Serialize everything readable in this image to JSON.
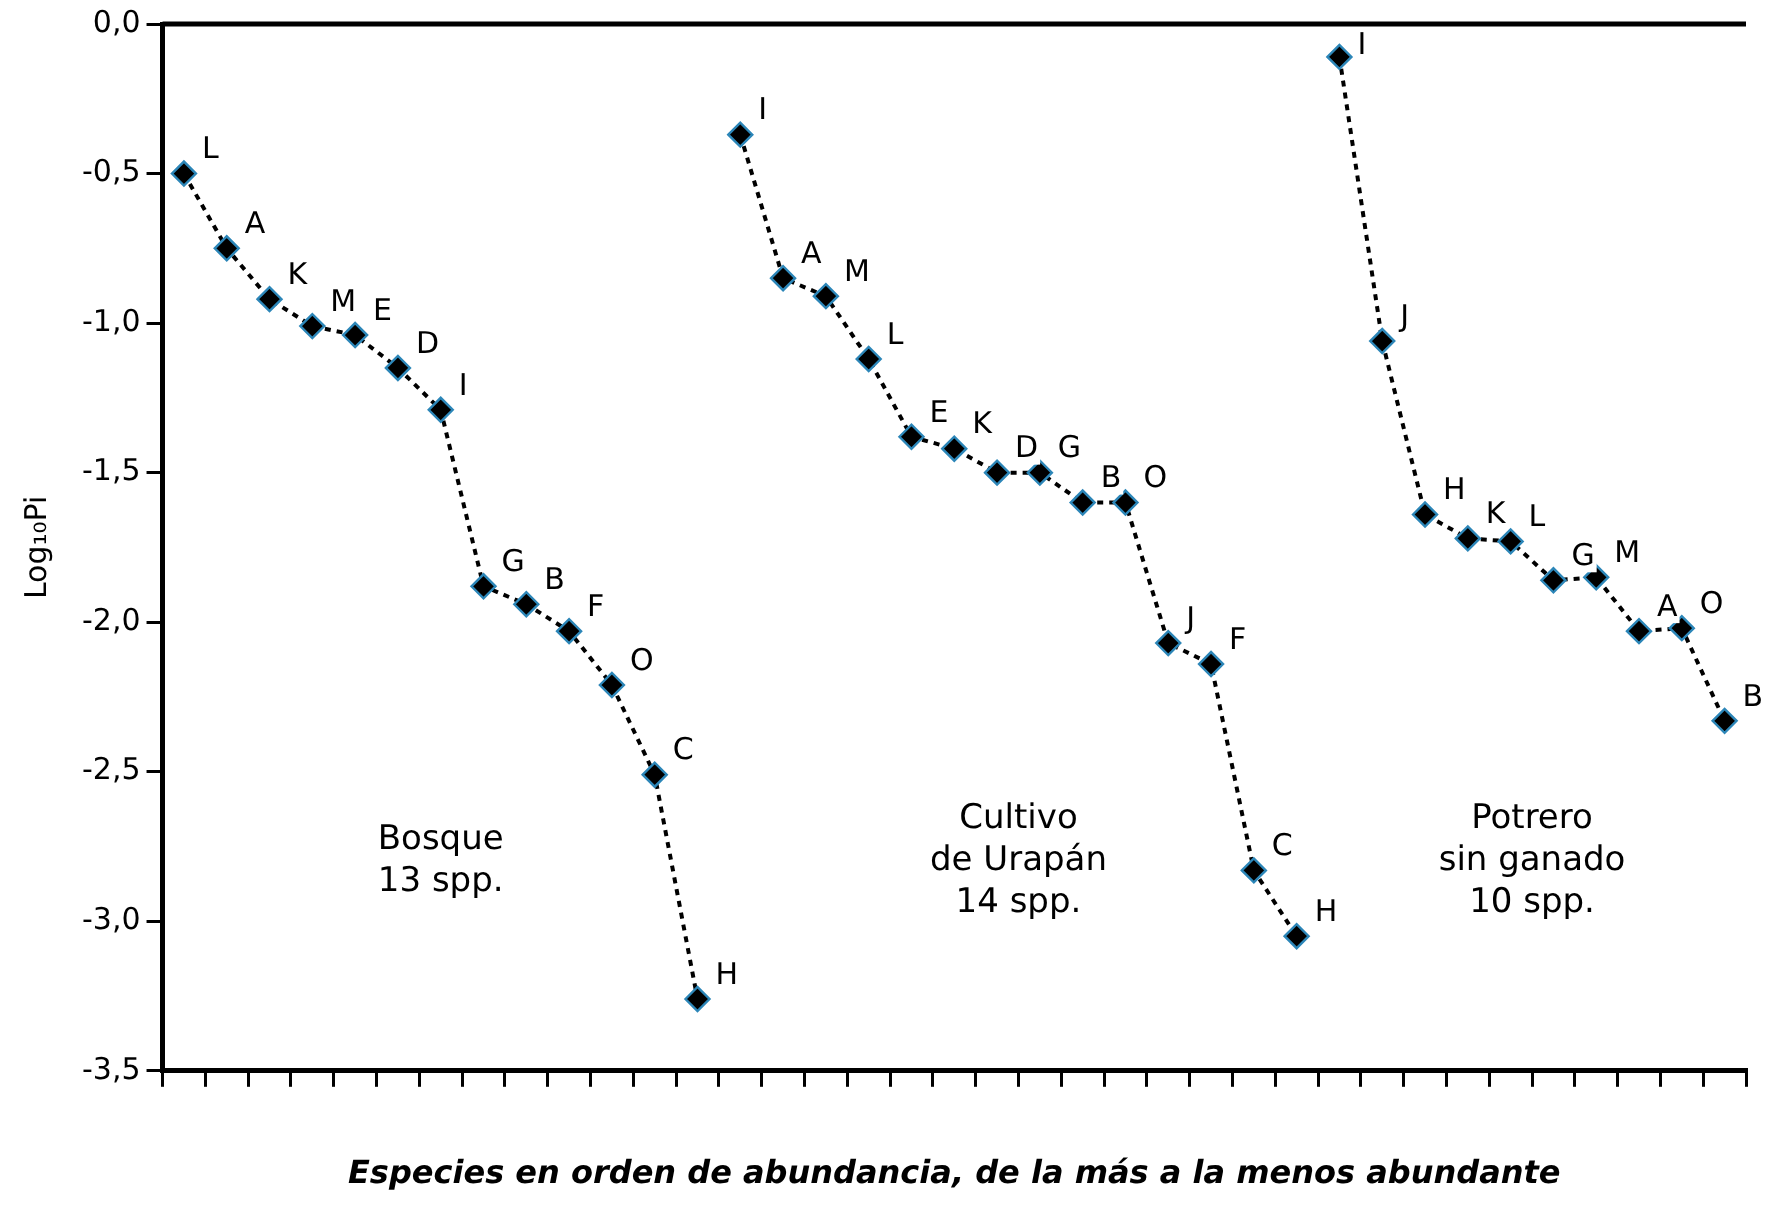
{
  "chart_data": {
    "type": "line",
    "ylabel": "Log₁₀Pi",
    "xlabel": "Especies en orden de abundancia, de la más a la menos abundante",
    "categories": [
      null,
      null,
      null,
      null,
      null,
      null,
      null,
      null,
      null,
      null,
      null,
      null,
      null,
      null,
      null,
      null,
      null,
      null,
      null,
      null,
      null,
      null,
      null,
      null,
      null,
      null,
      null,
      null,
      null,
      null,
      null,
      null,
      null,
      null,
      null,
      null,
      null
    ],
    "ylim": [
      -3.5,
      0
    ],
    "yticks": [
      {
        "value": 0,
        "label": "0,0"
      },
      {
        "value": -0.5,
        "label": "-0,5"
      },
      {
        "value": -1,
        "label": "-1,0"
      },
      {
        "value": -1.5,
        "label": "-1,5"
      },
      {
        "value": -2,
        "label": "-2,0"
      },
      {
        "value": -2.5,
        "label": "-2,5"
      },
      {
        "value": -3,
        "label": "-3,0"
      },
      {
        "value": -3.5,
        "label": "-3,5"
      }
    ],
    "series": [
      {
        "color": "#000000",
        "values": [
          -0.5,
          -0.75,
          -0.92,
          -1.01,
          -1.04,
          -1.15,
          -1.29,
          -1.88,
          -1.94,
          -2.03,
          -2.21,
          -2.51,
          -3.26,
          null,
          null,
          null,
          null,
          null,
          null,
          null,
          null,
          null,
          null,
          null,
          null,
          null,
          null,
          null,
          null,
          null,
          null,
          null,
          null,
          null,
          null,
          null,
          null
        ],
        "value_labels": [
          "L",
          "A",
          "K",
          "M",
          "E",
          "D",
          "I",
          "G",
          "B",
          "F",
          "O",
          "C",
          "H",
          null,
          null,
          null,
          null,
          null,
          null,
          null,
          null,
          null,
          null,
          null,
          null,
          null,
          null,
          null,
          null,
          null,
          null,
          null,
          null,
          null,
          null,
          null,
          null
        ]
      },
      {
        "color": "#000000",
        "values": [
          null,
          null,
          null,
          null,
          null,
          null,
          null,
          null,
          null,
          null,
          null,
          null,
          null,
          -0.37,
          -0.85,
          -0.91,
          -1.12,
          -1.38,
          -1.42,
          -1.5,
          -1.5,
          -1.6,
          -1.6,
          -2.07,
          -2.14,
          -2.83,
          -3.05,
          null,
          null,
          null,
          null,
          null,
          null,
          null,
          null,
          null,
          null
        ],
        "value_labels": [
          null,
          null,
          null,
          null,
          null,
          null,
          null,
          null,
          null,
          null,
          null,
          null,
          null,
          "I",
          "A",
          "M",
          "L",
          "E",
          "K",
          "D",
          "G",
          "B",
          "O",
          "J",
          "F",
          "C",
          "H",
          null,
          null,
          null,
          null,
          null,
          null,
          null,
          null,
          null,
          null
        ]
      },
      {
        "color": "#000000",
        "values": [
          null,
          null,
          null,
          null,
          null,
          null,
          null,
          null,
          null,
          null,
          null,
          null,
          null,
          null,
          null,
          null,
          null,
          null,
          null,
          null,
          null,
          null,
          null,
          null,
          null,
          null,
          null,
          -0.11,
          -1.06,
          -1.64,
          -1.72,
          -1.73,
          -1.86,
          -1.85,
          -2.03,
          -2.02,
          -2.33
        ],
        "value_labels": [
          null,
          null,
          null,
          null,
          null,
          null,
          null,
          null,
          null,
          null,
          null,
          null,
          null,
          null,
          null,
          null,
          null,
          null,
          null,
          null,
          null,
          null,
          null,
          null,
          null,
          null,
          null,
          "I",
          "J",
          "H",
          "K",
          "L",
          "G",
          "M",
          "A",
          "O",
          "B"
        ]
      }
    ],
    "annotations": [
      "Bosque\n13 spp.",
      "Cultivo\nde Urapán\n14 spp.",
      "Potrero\nsin ganado\n10 spp."
    ],
    "marker": "diamond",
    "line_style": "dotted",
    "grid": false,
    "legend": false
  }
}
